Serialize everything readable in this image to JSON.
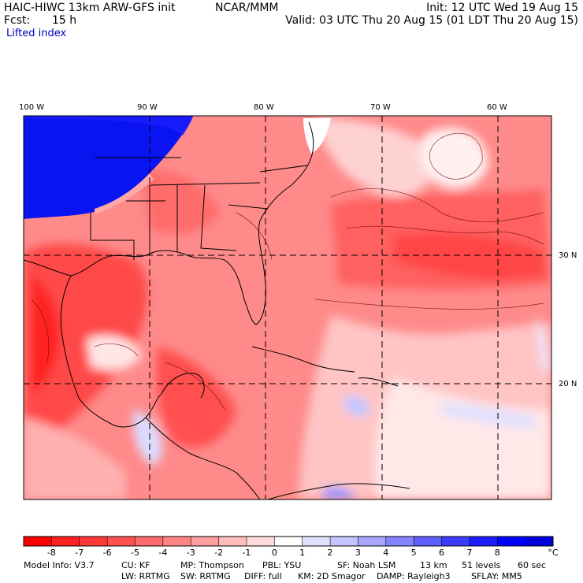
{
  "header": {
    "model": "HAIC-HIWC 13km ARW-GFS init",
    "org": "NCAR/MMM",
    "init": "Init: 12 UTC Wed 19 Aug 15",
    "fcst_label": "Fcst:",
    "fcst_value": "15 h",
    "valid": "Valid: 03 UTC Thu 20 Aug 15 (01 LDT Thu 20 Aug 15)",
    "field": "Lifted index"
  },
  "map": {
    "lon_labels": [
      "100 W",
      "90 W",
      "80 W",
      "70 W",
      "60 W"
    ],
    "lat_labels": [
      "30 N",
      "20 N"
    ]
  },
  "colorbar": {
    "labels": [
      "-8",
      "-7",
      "-6",
      "-5",
      "-4",
      "-3",
      "-2",
      "-1",
      "0",
      "1",
      "2",
      "3",
      "4",
      "5",
      "6",
      "7",
      "8"
    ],
    "unit": "°C",
    "colors": [
      "#ff0000",
      "#ff2020",
      "#ff3838",
      "#ff5050",
      "#ff6a6a",
      "#ff8484",
      "#ff9e9e",
      "#ffbcbc",
      "#ffdcdc",
      "#ffffff",
      "#e2e2ff",
      "#c4c4ff",
      "#a6a6ff",
      "#8484ff",
      "#6060ff",
      "#3c3cff",
      "#1c1cff",
      "#0000ff",
      "#0000dd"
    ]
  },
  "footer": {
    "line1": [
      "Model Info: V3.7",
      "CU: KF",
      "MP: Thompson",
      "PBL: YSU",
      "SF: Noah LSM",
      "13 km",
      "51 levels",
      "60 sec"
    ],
    "line2": [
      "LW: RRTMG",
      "SW: RRTMG",
      "DIFF: full",
      "KM: 2D Smagor",
      "DAMP: Rayleigh3",
      "SFLAY: MM5"
    ]
  }
}
